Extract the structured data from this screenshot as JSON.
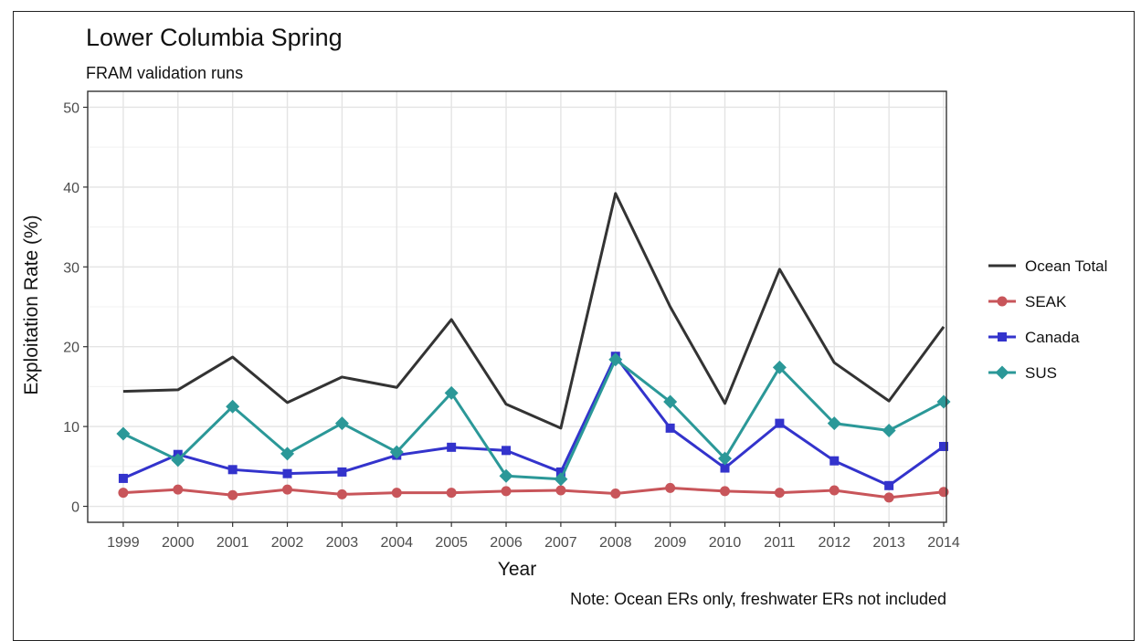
{
  "chart_data": {
    "type": "line",
    "title": "Lower Columbia Spring",
    "subtitle": "FRAM validation runs",
    "xlabel": "Year",
    "ylabel": "Exploitation Rate (%)",
    "caption": "Note: Ocean ERs only, freshwater ERs not included",
    "x": [
      "1999",
      "2000",
      "2001",
      "2002",
      "2003",
      "2004",
      "2005",
      "2006",
      "2007",
      "2008",
      "2009",
      "2010",
      "2011",
      "2012",
      "2013",
      "2014"
    ],
    "ylim": [
      -2,
      52
    ],
    "yticks": [
      0,
      10,
      20,
      30,
      40,
      50
    ],
    "grid": true,
    "legend_position": "right",
    "series": [
      {
        "name": "Ocean Total",
        "color": "#333333",
        "marker": "none",
        "values": [
          14.4,
          14.6,
          18.7,
          13.0,
          16.2,
          14.9,
          23.4,
          12.8,
          9.8,
          39.2,
          25.0,
          12.9,
          29.7,
          18.0,
          13.2,
          22.5
        ]
      },
      {
        "name": "SEAK",
        "color": "#c8555a",
        "marker": "circle",
        "values": [
          1.7,
          2.1,
          1.4,
          2.1,
          1.5,
          1.7,
          1.7,
          1.9,
          2.0,
          1.6,
          2.3,
          1.9,
          1.7,
          2.0,
          1.1,
          1.8
        ]
      },
      {
        "name": "Canada",
        "color": "#3333cc",
        "marker": "square",
        "values": [
          3.5,
          6.5,
          4.6,
          4.1,
          4.3,
          6.4,
          7.4,
          7.0,
          4.3,
          18.8,
          9.8,
          4.8,
          10.4,
          5.7,
          2.6,
          7.5
        ]
      },
      {
        "name": "SUS",
        "color": "#2b9898",
        "marker": "diamond",
        "values": [
          9.1,
          5.8,
          12.5,
          6.6,
          10.4,
          6.8,
          14.2,
          3.8,
          3.4,
          18.4,
          13.1,
          6.0,
          17.4,
          10.4,
          9.5,
          13.1
        ]
      }
    ]
  }
}
